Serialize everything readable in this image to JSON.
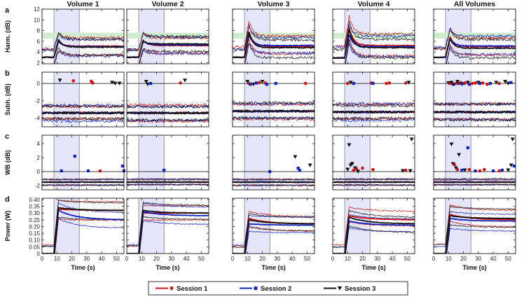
{
  "chart_data": {
    "type": "line",
    "columns": [
      "Volume 1",
      "Volume 2",
      "Volume 3",
      "Volume 4",
      "All Volumes"
    ],
    "x_label": "Time (s)",
    "xlim": [
      0,
      55
    ],
    "x_ticks": [
      0,
      10,
      20,
      30,
      40,
      50
    ],
    "shaded_interval": [
      8,
      25
    ],
    "rows": [
      {
        "letter": "a",
        "ylabel": "Harm. (dB)",
        "ylim": [
          1.8,
          12
        ],
        "yticks": [
          2,
          4,
          6,
          8,
          10,
          12
        ],
        "ytick_labels": [
          "2",
          "4",
          "6",
          "8",
          "10",
          "12"
        ],
        "green_band": [
          6.5,
          7.6
        ]
      },
      {
        "letter": "b",
        "ylabel": "Subh. (dB)",
        "ylim": [
          -5,
          1.3
        ],
        "yticks": [
          -4,
          -2,
          0
        ],
        "ytick_labels": [
          "-4",
          "-2",
          "0"
        ],
        "zero_line": 0
      },
      {
        "letter": "c",
        "ylabel": "WB (dB)",
        "ylim": [
          -2.6,
          5.2
        ],
        "yticks": [
          -2,
          0,
          2,
          4
        ],
        "ytick_labels": [
          "-2",
          "0",
          "2",
          "4"
        ],
        "zero_line": 0
      },
      {
        "letter": "d",
        "ylabel": "Power (W)",
        "ylim": [
          0,
          0.41
        ],
        "yticks": [
          0,
          0.05,
          0.1,
          0.15,
          0.2,
          0.25,
          0.3,
          0.35,
          0.4
        ],
        "ytick_labels": [
          "0",
          "0.05",
          "0.10",
          "0.15",
          "0.20",
          "0.25",
          "0.30",
          "0.35",
          "0.40"
        ]
      }
    ],
    "sessions": [
      {
        "name": "Session 1",
        "color": "#cc1111",
        "marker": "circle"
      },
      {
        "name": "Session 2",
        "color": "#1122bb",
        "marker": "square"
      },
      {
        "name": "Session 3",
        "color": "#111111",
        "marker": "triangle-down"
      }
    ],
    "harm_profiles": [
      {
        "s1": [
          3.0,
          6.0,
          5.1
        ],
        "s2": [
          3.0,
          6.0,
          5.0
        ],
        "s3": [
          3.0,
          6.3,
          4.9
        ],
        "spread": 1.8
      },
      {
        "s1": [
          3.0,
          6.2,
          5.2
        ],
        "s2": [
          3.0,
          6.0,
          5.3
        ],
        "s3": [
          3.0,
          6.0,
          5.5
        ],
        "spread": 1.6
      },
      {
        "s1": [
          3.0,
          7.8,
          5.0
        ],
        "s2": [
          3.0,
          7.2,
          5.2
        ],
        "s3": [
          3.0,
          7.6,
          4.8
        ],
        "spread": 1.8
      },
      {
        "s1": [
          2.9,
          8.6,
          5.2
        ],
        "s2": [
          2.9,
          7.2,
          5.0
        ],
        "s3": [
          2.9,
          8.2,
          4.8
        ],
        "spread": 2.0
      },
      {
        "s1": [
          3.0,
          6.8,
          5.0
        ],
        "s2": [
          3.0,
          6.5,
          5.1
        ],
        "s3": [
          3.0,
          6.5,
          4.7
        ],
        "spread": 1.8
      }
    ],
    "subh_mean": [
      -3.4,
      -3.4,
      -3.2,
      -3.3,
      -3.3
    ],
    "subh_spread": 0.8,
    "wb_mean": [
      -1.5,
      -1.5,
      -1.5,
      -1.5,
      -1.5
    ],
    "wb_spread": 0.4,
    "power_profiles": [
      {
        "s1": [
          0.0,
          0.33,
          0.32
        ],
        "s2": [
          0.0,
          0.32,
          0.25
        ],
        "s3": [
          0.0,
          0.34,
          0.32
        ],
        "spread": 0.07
      },
      {
        "s1": [
          0.0,
          0.3,
          0.3
        ],
        "s2": [
          0.0,
          0.31,
          0.28
        ],
        "s3": [
          0.0,
          0.32,
          0.3
        ],
        "spread": 0.06
      },
      {
        "s1": [
          0.0,
          0.26,
          0.22
        ],
        "s2": [
          0.0,
          0.22,
          0.21
        ],
        "s3": [
          0.0,
          0.25,
          0.22
        ],
        "spread": 0.06
      },
      {
        "s1": [
          0.0,
          0.28,
          0.25
        ],
        "s2": [
          0.0,
          0.24,
          0.21
        ],
        "s3": [
          0.0,
          0.27,
          0.22
        ],
        "spread": 0.06
      },
      {
        "s1": [
          0.0,
          0.29,
          0.25
        ],
        "s2": [
          0.0,
          0.26,
          0.24
        ],
        "s3": [
          0.0,
          0.28,
          0.26
        ],
        "spread": 0.07
      }
    ],
    "subh_markers": [
      [
        {
          "s": 3,
          "x": 12,
          "y": 0.35
        },
        {
          "s": 1,
          "x": 21,
          "y": 0.3
        },
        {
          "s": 1,
          "x": 33,
          "y": 0.25
        },
        {
          "s": 1,
          "x": 34,
          "y": 0.05
        },
        {
          "s": 3,
          "x": 47,
          "y": 0.1
        },
        {
          "s": 3,
          "x": 49,
          "y": 0.0
        },
        {
          "s": 3,
          "x": 52,
          "y": 0.0
        }
      ],
      [
        {
          "s": 3,
          "x": 13,
          "y": 0.2
        },
        {
          "s": 3,
          "x": 14,
          "y": -0.1
        },
        {
          "s": 2,
          "x": 16,
          "y": 0.0
        },
        {
          "s": 1,
          "x": 36,
          "y": 0.05
        },
        {
          "s": 3,
          "x": 39,
          "y": 0.35
        }
      ],
      [
        {
          "s": 3,
          "x": 10,
          "y": 0.2
        },
        {
          "s": 1,
          "x": 11,
          "y": 0.0
        },
        {
          "s": 2,
          "x": 12,
          "y": -0.1
        },
        {
          "s": 3,
          "x": 14,
          "y": -0.1
        },
        {
          "s": 2,
          "x": 16,
          "y": 0.05
        },
        {
          "s": 1,
          "x": 18,
          "y": 0.1
        },
        {
          "s": 3,
          "x": 20,
          "y": 0.2
        },
        {
          "s": 1,
          "x": 22,
          "y": 0.05
        },
        {
          "s": 2,
          "x": 23,
          "y": -0.1
        },
        {
          "s": 2,
          "x": 29,
          "y": 0.0
        },
        {
          "s": 1,
          "x": 49,
          "y": 0.0
        }
      ],
      [
        {
          "s": 1,
          "x": 10,
          "y": 0.0
        },
        {
          "s": 3,
          "x": 12,
          "y": 0.1
        },
        {
          "s": 2,
          "x": 14,
          "y": 0.0
        },
        {
          "s": 1,
          "x": 26,
          "y": 0.05
        },
        {
          "s": 2,
          "x": 27,
          "y": 0.0
        },
        {
          "s": 1,
          "x": 36,
          "y": 0.0
        },
        {
          "s": 1,
          "x": 38,
          "y": 0.05
        },
        {
          "s": 1,
          "x": 49,
          "y": 0.05
        },
        {
          "s": 3,
          "x": 51,
          "y": 0.1
        }
      ],
      [
        {
          "s": 3,
          "x": 10,
          "y": 0.05
        },
        {
          "s": 1,
          "x": 11,
          "y": 0.0
        },
        {
          "s": 3,
          "x": 12,
          "y": 0.1
        },
        {
          "s": 2,
          "x": 13,
          "y": -0.1
        },
        {
          "s": 3,
          "x": 14,
          "y": -0.1
        },
        {
          "s": 1,
          "x": 15,
          "y": 0.0
        },
        {
          "s": 3,
          "x": 16,
          "y": 0.2
        },
        {
          "s": 2,
          "x": 17,
          "y": 0.0
        },
        {
          "s": 1,
          "x": 18,
          "y": 0.1
        },
        {
          "s": 3,
          "x": 19,
          "y": -0.1
        },
        {
          "s": 2,
          "x": 20,
          "y": 0.0
        },
        {
          "s": 1,
          "x": 21,
          "y": 0.05
        },
        {
          "s": 3,
          "x": 23,
          "y": 0.1
        },
        {
          "s": 2,
          "x": 24,
          "y": -0.1
        },
        {
          "s": 1,
          "x": 26,
          "y": 0.0
        },
        {
          "s": 1,
          "x": 28,
          "y": 0.05
        },
        {
          "s": 3,
          "x": 30,
          "y": 0.1
        },
        {
          "s": 2,
          "x": 31,
          "y": 0.0
        },
        {
          "s": 1,
          "x": 33,
          "y": 0.05
        },
        {
          "s": 1,
          "x": 36,
          "y": -0.1
        },
        {
          "s": 2,
          "x": 38,
          "y": 0.0
        },
        {
          "s": 3,
          "x": 42,
          "y": 0.1
        },
        {
          "s": 1,
          "x": 44,
          "y": 0.0
        },
        {
          "s": 3,
          "x": 48,
          "y": 0.2
        },
        {
          "s": 3,
          "x": 50,
          "y": 0.0
        },
        {
          "s": 2,
          "x": 52,
          "y": 0.1
        }
      ]
    ],
    "wb_markers": [
      [
        {
          "s": 2,
          "x": 13,
          "y": 0.1
        },
        {
          "s": 2,
          "x": 22,
          "y": 2.2
        },
        {
          "s": 2,
          "x": 31,
          "y": 0.1
        },
        {
          "s": 1,
          "x": 39,
          "y": 0.1
        },
        {
          "s": 2,
          "x": 54,
          "y": 0.8
        },
        {
          "s": 2,
          "x": 55,
          "y": 0.1
        }
      ],
      [
        {
          "s": 2,
          "x": 25,
          "y": 0.2
        }
      ],
      [
        {
          "s": 2,
          "x": 25,
          "y": 0.0
        },
        {
          "s": 3,
          "x": 42,
          "y": 2.1
        },
        {
          "s": 2,
          "x": 44,
          "y": 0.5
        },
        {
          "s": 2,
          "x": 45,
          "y": 0.2
        },
        {
          "s": 3,
          "x": 52,
          "y": 0.9
        }
      ],
      [
        {
          "s": 3,
          "x": 10,
          "y": 0.3
        },
        {
          "s": 3,
          "x": 11,
          "y": 3.8
        },
        {
          "s": 3,
          "x": 12,
          "y": 0.9
        },
        {
          "s": 1,
          "x": 13,
          "y": 1.2
        },
        {
          "s": 3,
          "x": 13,
          "y": 1.1
        },
        {
          "s": 1,
          "x": 14,
          "y": 0.2
        },
        {
          "s": 3,
          "x": 15,
          "y": 0.5
        },
        {
          "s": 1,
          "x": 16,
          "y": 0.4
        },
        {
          "s": 3,
          "x": 17,
          "y": 0.0
        },
        {
          "s": 1,
          "x": 20,
          "y": 0.5
        },
        {
          "s": 1,
          "x": 27,
          "y": 0.3
        },
        {
          "s": 3,
          "x": 47,
          "y": 0.1
        },
        {
          "s": 1,
          "x": 49,
          "y": 0.2
        },
        {
          "s": 3,
          "x": 52,
          "y": 0.1
        },
        {
          "s": 3,
          "x": 53,
          "y": 4.6
        }
      ],
      [
        {
          "s": 3,
          "x": 12,
          "y": 3.9
        },
        {
          "s": 3,
          "x": 13,
          "y": 1.1
        },
        {
          "s": 1,
          "x": 14,
          "y": 1.0
        },
        {
          "s": 3,
          "x": 15,
          "y": 0.5
        },
        {
          "s": 1,
          "x": 16,
          "y": 0.3
        },
        {
          "s": 3,
          "x": 17,
          "y": 2.4
        },
        {
          "s": 2,
          "x": 19,
          "y": 0.2
        },
        {
          "s": 3,
          "x": 21,
          "y": 0.2
        },
        {
          "s": 2,
          "x": 23,
          "y": 3.4
        },
        {
          "s": 1,
          "x": 24,
          "y": 0.3
        },
        {
          "s": 2,
          "x": 28,
          "y": 0.1
        },
        {
          "s": 1,
          "x": 31,
          "y": 0.1
        },
        {
          "s": 1,
          "x": 34,
          "y": 0.3
        },
        {
          "s": 2,
          "x": 40,
          "y": 0.1
        },
        {
          "s": 1,
          "x": 44,
          "y": 0.1
        },
        {
          "s": 2,
          "x": 46,
          "y": 0.2
        },
        {
          "s": 3,
          "x": 50,
          "y": 0.2
        },
        {
          "s": 3,
          "x": 52,
          "y": 0.9
        },
        {
          "s": 3,
          "x": 53,
          "y": 4.6
        },
        {
          "s": 2,
          "x": 54,
          "y": 0.8
        }
      ]
    ]
  }
}
